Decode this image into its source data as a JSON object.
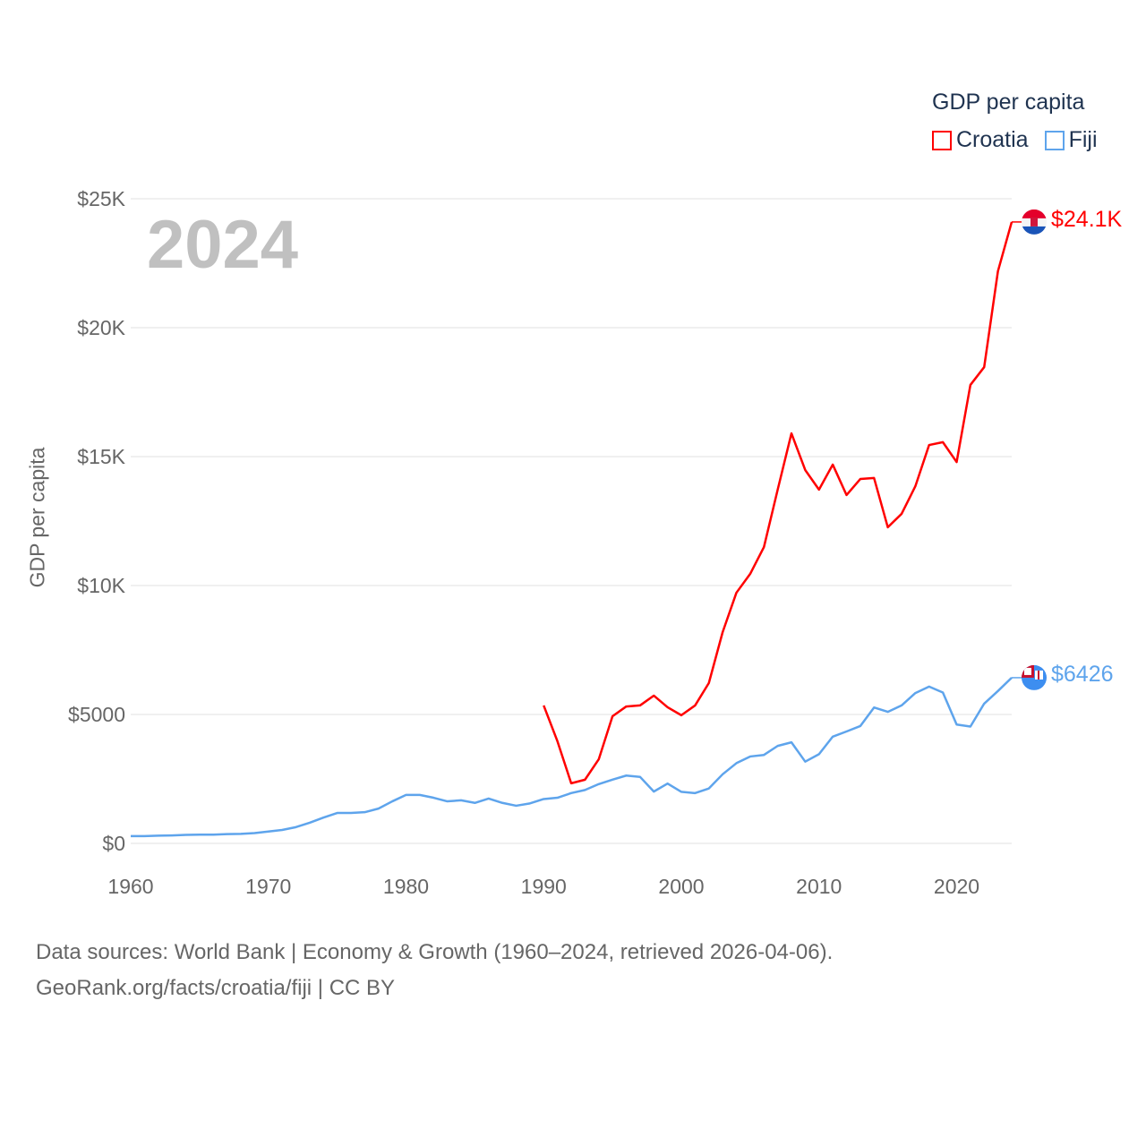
{
  "chart_data": {
    "type": "line",
    "title": "GDP per capita",
    "current_year_label": "2024",
    "xlabel": "",
    "ylabel": "GDP per capita",
    "xlim": [
      1960,
      2024
    ],
    "ylim": [
      0,
      25000
    ],
    "x_ticks": [
      1960,
      1970,
      1980,
      1990,
      2000,
      2010,
      2020
    ],
    "x_tick_labels": [
      "1960",
      "1970",
      "1980",
      "1990",
      "2000",
      "2010",
      "2020"
    ],
    "y_ticks": [
      0,
      5000,
      10000,
      15000,
      20000,
      25000
    ],
    "y_tick_labels": [
      "$0",
      "$5000",
      "$10K",
      "$15K",
      "$20K",
      "$25K"
    ],
    "grid": true,
    "legend_placement": "top-right",
    "series": [
      {
        "name": "Croatia",
        "color": "#ff0000",
        "end_label": "$24.1K",
        "flag": "croatia-flag",
        "start_year": 1990,
        "values": [
          5350,
          3960,
          2330,
          2470,
          3260,
          4930,
          5310,
          5350,
          5730,
          5280,
          4970,
          5350,
          6220,
          8190,
          9720,
          10450,
          11490,
          13720,
          15900,
          14480,
          13720,
          14690,
          13510,
          14130,
          14170,
          12260,
          12780,
          13850,
          15450,
          15560,
          14790,
          17780,
          18470,
          22190,
          24100
        ]
      },
      {
        "name": "Fiji",
        "color": "#5ea4ec",
        "end_label": "$6426",
        "flag": "fiji-flag",
        "start_year": 1960,
        "values": [
          280,
          280,
          300,
          310,
          330,
          340,
          340,
          360,
          370,
          400,
          460,
          520,
          630,
          800,
          1000,
          1180,
          1180,
          1210,
          1350,
          1630,
          1880,
          1880,
          1770,
          1630,
          1670,
          1570,
          1740,
          1570,
          1460,
          1550,
          1720,
          1770,
          1950,
          2070,
          2300,
          2470,
          2630,
          2580,
          2010,
          2320,
          2000,
          1950,
          2130,
          2680,
          3110,
          3370,
          3430,
          3780,
          3920,
          3170,
          3460,
          4140,
          4340,
          4550,
          5270,
          5100,
          5350,
          5830,
          6080,
          5850,
          4610,
          4530,
          5420,
          5910,
          6426
        ]
      }
    ]
  },
  "footer": {
    "line1": "Data sources: World Bank | Economy & Growth (1960–2024, retrieved 2026-04-06).",
    "line2": "GeoRank.org/facts/croatia/fiji | CC BY"
  }
}
